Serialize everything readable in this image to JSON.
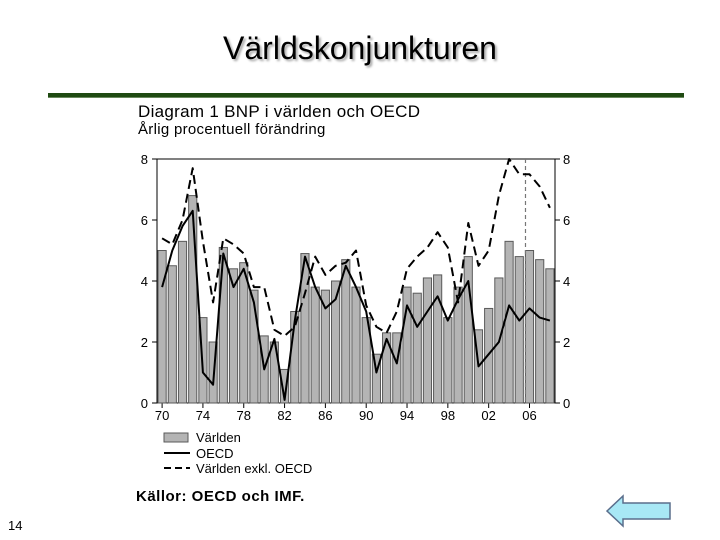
{
  "slide": {
    "title": "Världskonjunkturen",
    "number": "14"
  },
  "nav": {
    "back_button": "back-arrow-icon"
  },
  "colors": {
    "title_rule": "#1f4a12",
    "bar_fill": "#b4b4b4",
    "bar_stroke": "#5a5a5a",
    "line": "#000000",
    "arrow_fill": "#a8e8f5",
    "arrow_stroke": "#5a6e8c"
  },
  "chart_data": {
    "type": "bar",
    "title": "Diagram 1 BNP i världen och OECD",
    "subtitle": "Årlig procentuell förändring",
    "source": "Källor: OECD och IMF.",
    "xlabel": "",
    "ylabel": "",
    "ylim": [
      0,
      8
    ],
    "yticks": [
      "0",
      "2",
      "4",
      "6",
      "8"
    ],
    "xtick_labels": [
      "70",
      "74",
      "78",
      "82",
      "86",
      "90",
      "94",
      "98",
      "02",
      "06"
    ],
    "xtick_years": [
      1970,
      1974,
      1978,
      1982,
      1986,
      1990,
      1994,
      1998,
      2002,
      2006
    ],
    "vertical_marker_year": 2006,
    "legend_position": "bottom-left",
    "categories": [
      1970,
      1971,
      1972,
      1973,
      1974,
      1975,
      1976,
      1977,
      1978,
      1979,
      1980,
      1981,
      1982,
      1983,
      1984,
      1985,
      1986,
      1987,
      1988,
      1989,
      1990,
      1991,
      1992,
      1993,
      1994,
      1995,
      1996,
      1997,
      1998,
      1999,
      2000,
      2001,
      2002,
      2003,
      2004,
      2005,
      2006,
      2007,
      2008
    ],
    "series": [
      {
        "name": "Världen",
        "style": "bar",
        "values": [
          5.0,
          4.5,
          5.3,
          6.8,
          2.8,
          2.0,
          5.1,
          4.4,
          4.6,
          3.7,
          2.2,
          2.0,
          1.1,
          3.0,
          4.9,
          3.8,
          3.7,
          4.0,
          4.7,
          3.8,
          2.8,
          1.6,
          2.3,
          2.3,
          3.8,
          3.6,
          4.1,
          4.2,
          2.8,
          3.8,
          4.8,
          2.4,
          3.1,
          4.1,
          5.3,
          4.8,
          5.0,
          4.7,
          4.4
        ]
      },
      {
        "name": "OECD",
        "style": "solid",
        "values": [
          3.8,
          5.0,
          5.8,
          6.3,
          1.0,
          0.6,
          4.9,
          3.8,
          4.4,
          3.3,
          1.1,
          2.1,
          0.1,
          2.7,
          4.8,
          3.8,
          3.1,
          3.4,
          4.5,
          3.8,
          3.0,
          1.0,
          2.1,
          1.3,
          3.2,
          2.5,
          3.0,
          3.5,
          2.7,
          3.4,
          4.0,
          1.2,
          1.6,
          2.0,
          3.2,
          2.7,
          3.1,
          2.8,
          2.7
        ]
      },
      {
        "name": "Världen exkl. OECD",
        "style": "dashed",
        "values": [
          5.4,
          5.2,
          6.0,
          7.7,
          5.3,
          3.3,
          5.4,
          5.2,
          4.9,
          3.8,
          3.8,
          2.4,
          2.2,
          2.5,
          3.6,
          4.8,
          4.2,
          4.5,
          4.6,
          5.0,
          3.2,
          2.5,
          2.3,
          3.0,
          4.4,
          4.8,
          5.1,
          5.6,
          5.1,
          3.3,
          5.9,
          4.5,
          5.0,
          6.8,
          8.0,
          7.5,
          7.5,
          7.1,
          6.4
        ]
      }
    ]
  }
}
